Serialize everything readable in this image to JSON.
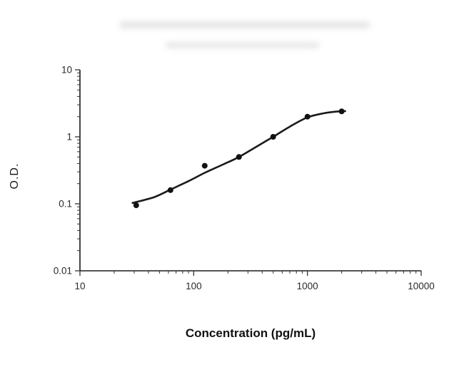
{
  "chart_data": {
    "type": "scatter",
    "title": "",
    "xlabel": "Concentration (pg/mL)",
    "ylabel": "O.D.",
    "x_scale": "log",
    "y_scale": "log",
    "xlim": [
      10,
      10000
    ],
    "ylim": [
      0.01,
      10
    ],
    "x_ticks": [
      10,
      100,
      1000,
      10000
    ],
    "x_tick_labels": [
      "10",
      "100",
      "1000",
      "10000"
    ],
    "y_ticks": [
      0.01,
      0.1,
      1,
      10
    ],
    "y_tick_labels": [
      "0.01",
      "0.1",
      "1",
      "10"
    ],
    "grid": false,
    "legend": "none",
    "points": [
      {
        "x": 31.25,
        "y": 0.095
      },
      {
        "x": 62.5,
        "y": 0.16
      },
      {
        "x": 125,
        "y": 0.37
      },
      {
        "x": 250,
        "y": 0.5
      },
      {
        "x": 500,
        "y": 1.0
      },
      {
        "x": 1000,
        "y": 2.0
      },
      {
        "x": 2000,
        "y": 2.4
      }
    ],
    "fit_curve": [
      {
        "x": 29,
        "y": 0.103
      },
      {
        "x": 45,
        "y": 0.126
      },
      {
        "x": 62.5,
        "y": 0.163
      },
      {
        "x": 90,
        "y": 0.218
      },
      {
        "x": 125,
        "y": 0.29
      },
      {
        "x": 180,
        "y": 0.385
      },
      {
        "x": 250,
        "y": 0.5
      },
      {
        "x": 350,
        "y": 0.7
      },
      {
        "x": 500,
        "y": 1.0
      },
      {
        "x": 700,
        "y": 1.42
      },
      {
        "x": 1000,
        "y": 1.95
      },
      {
        "x": 1400,
        "y": 2.25
      },
      {
        "x": 1800,
        "y": 2.38
      },
      {
        "x": 2150,
        "y": 2.42
      }
    ],
    "axis_color": "#1a1a1a",
    "tick_color": "#333333",
    "label_color": "#2b2b2b",
    "point_color": "#111111",
    "curve_color": "#1a1a1a"
  }
}
